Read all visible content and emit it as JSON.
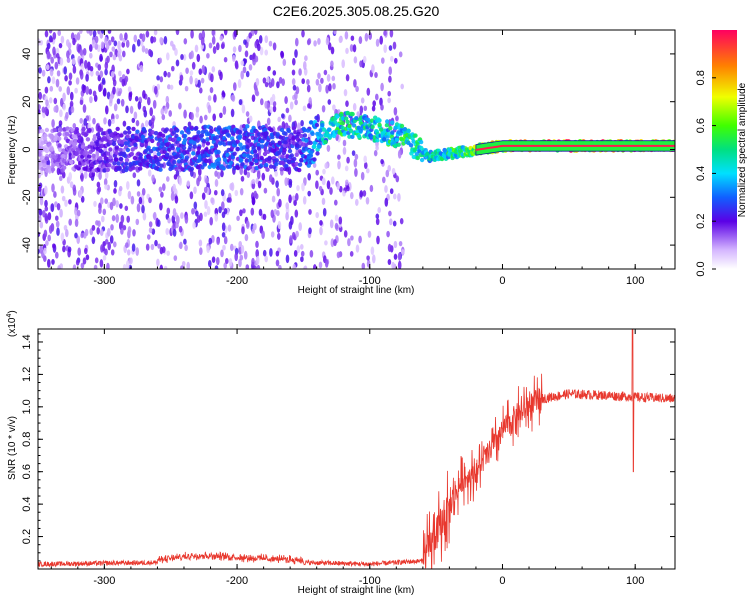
{
  "title": "C2E6.2025.305.08.25.G20",
  "chart_data": [
    {
      "type": "heatmap",
      "name": "spectrogram",
      "xlabel": "Height of straight line (km)",
      "ylabel": "Frequency (Hz)",
      "xlim": [
        -350,
        130
      ],
      "ylim": [
        -50,
        50
      ],
      "x_ticks": [
        -300,
        -200,
        -100,
        0,
        100
      ],
      "x_tick_labels": [
        "-300",
        "-200",
        "-100",
        "0",
        "100"
      ],
      "y_ticks": [
        -40,
        -20,
        0,
        20,
        40
      ],
      "y_tick_labels": [
        "-40",
        "-20",
        "0",
        "20",
        "40"
      ],
      "description_points": [
        {
          "x": -350,
          "y": 0,
          "amp": 0.15
        },
        {
          "x": -270,
          "y": 0,
          "amp": 0.35
        },
        {
          "x": -200,
          "y": 1,
          "amp": 0.4
        },
        {
          "x": -150,
          "y": 0,
          "amp": 0.3
        },
        {
          "x": -125,
          "y": 11,
          "amp": 0.55
        },
        {
          "x": -100,
          "y": 9,
          "amp": 0.5
        },
        {
          "x": -75,
          "y": 5,
          "amp": 0.55
        },
        {
          "x": -55,
          "y": -3,
          "amp": 0.5
        },
        {
          "x": -30,
          "y": -1,
          "amp": 0.6
        },
        {
          "x": 0,
          "y": 1.5,
          "amp": 0.9
        },
        {
          "x": 50,
          "y": 1.5,
          "amp": 0.95
        },
        {
          "x": 130,
          "y": 1.5,
          "amp": 0.95
        }
      ],
      "colorbar": {
        "label": "Normalized spectral amplitude",
        "range": [
          0.0,
          1.0
        ],
        "ticks": [
          0.0,
          0.2,
          0.4,
          0.6,
          0.8
        ],
        "tick_labels": [
          "0.0",
          "0.2",
          "0.4",
          "0.6",
          "0.8"
        ]
      }
    },
    {
      "type": "line",
      "name": "snr",
      "xlabel": "Height of straight line (km)",
      "ylabel": "SNR (10 * v/v)",
      "multiplier_label": "(x10",
      "multiplier_exp": "4",
      "multiplier_close": ")",
      "xlim": [
        -350,
        130
      ],
      "ylim": [
        0,
        1.48
      ],
      "x_ticks": [
        -300,
        -200,
        -100,
        0,
        100
      ],
      "x_tick_labels": [
        "-300",
        "-200",
        "-100",
        "0",
        "100"
      ],
      "y_ticks": [
        0.2,
        0.4,
        0.6,
        0.8,
        1.0,
        1.2,
        1.4
      ],
      "y_tick_labels": [
        "0.2",
        "0.4",
        "0.6",
        "0.8",
        "1.0",
        "1.2",
        "1.4"
      ],
      "color": "#e8382e",
      "series_outline": [
        {
          "x": -350,
          "y": 0.03
        },
        {
          "x": -260,
          "y": 0.04
        },
        {
          "x": -230,
          "y": 0.07
        },
        {
          "x": -180,
          "y": 0.05
        },
        {
          "x": -150,
          "y": 0.04
        },
        {
          "x": -100,
          "y": 0.03
        },
        {
          "x": -60,
          "y": 0.05
        },
        {
          "x": -45,
          "y": 0.3
        },
        {
          "x": -30,
          "y": 0.55
        },
        {
          "x": -20,
          "y": 0.6
        },
        {
          "x": -10,
          "y": 0.72
        },
        {
          "x": 0,
          "y": 0.85
        },
        {
          "x": 10,
          "y": 0.95
        },
        {
          "x": 30,
          "y": 1.05
        },
        {
          "x": 50,
          "y": 1.08
        },
        {
          "x": 80,
          "y": 1.07
        },
        {
          "x": 100,
          "y": 1.06
        },
        {
          "x": 130,
          "y": 1.05
        }
      ],
      "spike": {
        "x": 98,
        "y_max": 1.48,
        "y_min": 0.6
      }
    }
  ]
}
